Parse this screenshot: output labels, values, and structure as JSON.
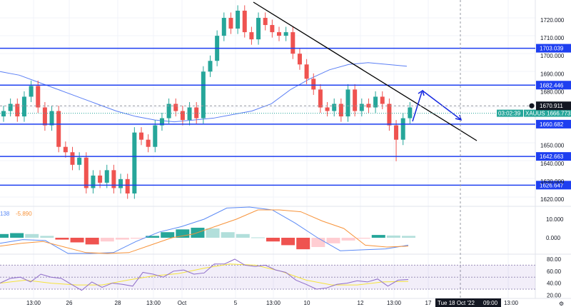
{
  "symbol": "XAUUSD",
  "colors": {
    "up": "#26a69a",
    "down": "#ef5350",
    "level": "#1e3ff0",
    "ma": "#5b7ff5",
    "macd": "#5b8af5",
    "signal": "#f7933a",
    "rsi": "#8e6cc9",
    "rsi_ma": "#f5e33b",
    "hist_up_light": "#b2dfdb",
    "hist_down_light": "#ffcdd2",
    "trend": "#000000",
    "arrow": "#1326e0"
  },
  "price_axis": {
    "ticks": [
      "1720.000",
      "1710.000",
      "1700.000",
      "1690.000",
      "1680.000",
      "1650.000",
      "1640.000",
      "1630.000",
      "1620.000"
    ],
    "tick_values": [
      1720,
      1710,
      1700,
      1690,
      1680,
      1650,
      1640,
      1630,
      1620
    ]
  },
  "levels": [
    {
      "value": 1703.039,
      "label": "1703.039"
    },
    {
      "value": 1682.446,
      "label": "1682.446"
    },
    {
      "value": 1660.682,
      "label": "1660.682"
    },
    {
      "value": 1642.663,
      "label": "1642.663"
    },
    {
      "value": 1626.647,
      "label": "1626.647"
    }
  ],
  "crosshair_price": {
    "value": 1670.911,
    "label": "1670.911"
  },
  "last_price": {
    "value": 1666.773,
    "label": "1666.773",
    "countdown": "03:02:39"
  },
  "macd_pane": {
    "values_label_1": "138",
    "values_label_2": "-5.890",
    "ticks": [
      "10.000",
      "0.000"
    ],
    "tick_values": [
      10,
      0
    ]
  },
  "rsi_pane": {
    "ticks": [
      "80.00",
      "60.00",
      "40.00",
      "20.00"
    ],
    "tick_values": [
      80,
      60,
      40,
      20
    ]
  },
  "time_axis": {
    "labels": [
      "13:00",
      "26",
      "28",
      "13:00",
      "Oct",
      "5",
      "13:00",
      "10",
      "12",
      "13:00",
      "17",
      "13:00"
    ],
    "crosshair_label": "Tue 18 Oct '22",
    "crosshair_time": "09:00"
  },
  "chart_data": {
    "type": "candlestick",
    "symbol": "XAUUSD",
    "ylim": [
      1615,
      1732
    ],
    "close": [
      1668,
      1672,
      1665,
      1676,
      1682,
      1670,
      1660,
      1668,
      1648,
      1645,
      1638,
      1642,
      1625,
      1632,
      1628,
      1635,
      1625,
      1630,
      1622,
      1656,
      1652,
      1648,
      1660,
      1664,
      1672,
      1668,
      1663,
      1670,
      1664,
      1690,
      1696,
      1710,
      1720,
      1714,
      1724,
      1712,
      1708,
      1720,
      1716,
      1712,
      1710,
      1712,
      1700,
      1694,
      1686,
      1680,
      1670,
      1668,
      1672,
      1665,
      1680,
      1668,
      1672,
      1670,
      1676,
      1672,
      1660,
      1652,
      1664,
      1670
    ],
    "moving_average": [
      1690,
      1688,
      1684,
      1680,
      1676,
      1672,
      1668,
      1665,
      1663,
      1662,
      1663,
      1664,
      1666,
      1668,
      1672,
      1680,
      1686,
      1691,
      1694,
      1695,
      1694,
      1693
    ],
    "macd": {
      "histogram": [
        2,
        2.5,
        2,
        1,
        -1,
        -2.5,
        -3.6,
        -2,
        -1,
        -0.5,
        1,
        3,
        4.5,
        5.4,
        5,
        3,
        2,
        0.2,
        -2,
        -4,
        -6.2,
        -5,
        -3,
        -1.5,
        -0.5,
        1.5,
        1.2,
        1
      ],
      "macd_line": [
        -3,
        -1,
        -1.5,
        -10,
        -9,
        -8,
        -2,
        3,
        6,
        10,
        16,
        17,
        15,
        8,
        0,
        -7,
        -6.5,
        -6,
        -4
      ],
      "signal_line": [
        -4.5,
        -3,
        -2,
        -5,
        -8,
        -9,
        -8,
        -4,
        0,
        2,
        6,
        10,
        15,
        15,
        14,
        9,
        5,
        -4,
        -5,
        -4.5
      ]
    },
    "rsi": {
      "values": [
        40,
        48,
        50,
        42,
        55,
        50,
        48,
        38,
        28,
        42,
        33,
        40,
        38,
        35,
        58,
        55,
        50,
        60,
        62,
        55,
        57,
        72,
        72,
        80,
        70,
        68,
        70,
        62,
        58,
        45,
        38,
        30,
        32,
        38,
        40,
        44,
        42,
        47,
        35,
        45,
        46
      ],
      "ma": [
        40,
        45,
        40,
        37,
        37,
        45,
        52,
        56,
        65,
        72,
        70,
        60,
        45,
        37,
        37,
        42,
        43
      ],
      "bands": [
        70,
        50,
        30
      ]
    }
  }
}
